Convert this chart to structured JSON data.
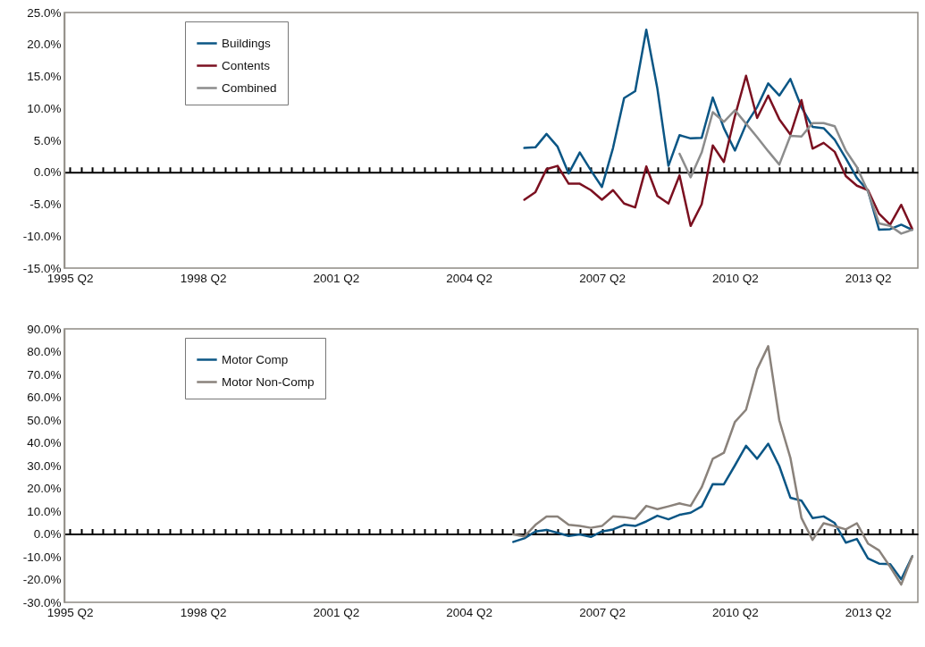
{
  "chart_data": [
    {
      "type": "line",
      "legend": "top left",
      "categories": [
        "1995 Q2",
        null,
        null,
        null,
        null,
        null,
        null,
        null,
        null,
        null,
        null,
        null,
        "1998 Q2",
        null,
        null,
        null,
        null,
        null,
        null,
        null,
        null,
        null,
        null,
        null,
        "2001 Q2",
        null,
        null,
        null,
        null,
        null,
        null,
        null,
        null,
        null,
        null,
        null,
        "2004 Q2",
        null,
        null,
        null,
        null,
        null,
        null,
        null,
        null,
        null,
        null,
        null,
        "2007 Q2",
        null,
        null,
        null,
        null,
        null,
        null,
        null,
        null,
        null,
        null,
        null,
        "2010 Q2",
        null,
        null,
        null,
        null,
        null,
        null,
        null,
        null,
        null,
        null,
        null,
        "2013 Q2",
        null,
        null,
        null,
        null
      ],
      "series": [
        {
          "name": "Buildings",
          "color": "#0b5685",
          "values": [
            null,
            null,
            null,
            null,
            null,
            null,
            null,
            null,
            null,
            null,
            null,
            null,
            null,
            null,
            null,
            null,
            null,
            null,
            null,
            null,
            null,
            null,
            null,
            null,
            null,
            null,
            null,
            null,
            null,
            null,
            null,
            null,
            null,
            null,
            null,
            null,
            null,
            null,
            null,
            null,
            null,
            3.8,
            3.9,
            6.0,
            4.0,
            -0.2,
            3.1,
            0.3,
            -2.3,
            3.8,
            11.6,
            12.7,
            22.3,
            13.1,
            1.0,
            5.8,
            5.3,
            5.4,
            11.7,
            6.9,
            3.4,
            7.5,
            10.2,
            13.9,
            12.0,
            14.6,
            10.2,
            7.1,
            6.9,
            5.1,
            2.2,
            -0.9,
            -2.9,
            -9.0,
            -8.9,
            -8.2,
            -9.0
          ]
        },
        {
          "name": "Contents",
          "color": "#7b1020",
          "values": [
            null,
            null,
            null,
            null,
            null,
            null,
            null,
            null,
            null,
            null,
            null,
            null,
            null,
            null,
            null,
            null,
            null,
            null,
            null,
            null,
            null,
            null,
            null,
            null,
            null,
            null,
            null,
            null,
            null,
            null,
            null,
            null,
            null,
            null,
            null,
            null,
            null,
            null,
            null,
            null,
            null,
            -4.3,
            -3.1,
            0.5,
            1.0,
            -1.8,
            -1.8,
            -2.8,
            -4.3,
            -2.8,
            -4.9,
            -5.5,
            0.9,
            -3.7,
            -4.9,
            -0.5,
            -8.4,
            -5.0,
            4.2,
            1.6,
            8.8,
            15.1,
            8.5,
            12.0,
            8.3,
            5.9,
            11.3,
            3.7,
            4.6,
            3.2,
            -0.6,
            -2.1,
            -2.8,
            -6.5,
            -8.2,
            -5.1,
            -8.9
          ]
        },
        {
          "name": "Combined",
          "color": "#8c8c8c",
          "values": [
            null,
            null,
            null,
            null,
            null,
            null,
            null,
            null,
            null,
            null,
            null,
            null,
            null,
            null,
            null,
            null,
            null,
            null,
            null,
            null,
            null,
            null,
            null,
            null,
            null,
            null,
            null,
            null,
            null,
            null,
            null,
            null,
            null,
            null,
            null,
            null,
            null,
            null,
            null,
            null,
            null,
            null,
            null,
            null,
            null,
            null,
            null,
            null,
            null,
            null,
            null,
            null,
            null,
            null,
            null,
            2.9,
            -0.8,
            3.1,
            9.4,
            7.9,
            9.7,
            7.6,
            5.5,
            3.3,
            1.2,
            5.7,
            5.6,
            7.7,
            7.7,
            7.2,
            3.4,
            0.8,
            -3.0,
            -8.0,
            -8.4,
            -9.6,
            -9.0
          ]
        }
      ],
      "ylim": [
        -15,
        25
      ],
      "yticks": [
        {
          "value": -15,
          "label": "-15.0%"
        },
        {
          "value": -10,
          "label": "-10.0%"
        },
        {
          "value": -5,
          "label": "-5.0%"
        },
        {
          "value": 0,
          "label": "0.0%"
        },
        {
          "value": 5,
          "label": "5.0%"
        },
        {
          "value": 10,
          "label": "10.0%"
        },
        {
          "value": 15,
          "label": "15.0%"
        },
        {
          "value": 20,
          "label": "20.0%"
        },
        {
          "value": 25,
          "label": "25.0%"
        }
      ]
    },
    {
      "type": "line",
      "legend": "top left",
      "categories": [
        "1995 Q2",
        null,
        null,
        null,
        null,
        null,
        null,
        null,
        null,
        null,
        null,
        null,
        "1998 Q2",
        null,
        null,
        null,
        null,
        null,
        null,
        null,
        null,
        null,
        null,
        null,
        "2001 Q2",
        null,
        null,
        null,
        null,
        null,
        null,
        null,
        null,
        null,
        null,
        null,
        "2004 Q2",
        null,
        null,
        null,
        null,
        null,
        null,
        null,
        null,
        null,
        null,
        null,
        "2007 Q2",
        null,
        null,
        null,
        null,
        null,
        null,
        null,
        null,
        null,
        null,
        null,
        "2010 Q2",
        null,
        null,
        null,
        null,
        null,
        null,
        null,
        null,
        null,
        null,
        null,
        "2013 Q2",
        null,
        null,
        null,
        null
      ],
      "series": [
        {
          "name": "Motor Comp",
          "color": "#0b5685",
          "values": [
            null,
            null,
            null,
            null,
            null,
            null,
            null,
            null,
            null,
            null,
            null,
            null,
            null,
            null,
            null,
            null,
            null,
            null,
            null,
            null,
            null,
            null,
            null,
            null,
            null,
            null,
            null,
            null,
            null,
            null,
            null,
            null,
            null,
            null,
            null,
            null,
            null,
            null,
            null,
            null,
            -3.5,
            -1.9,
            1.1,
            1.8,
            0.5,
            -0.9,
            -0.2,
            -1.3,
            1.1,
            2.0,
            4.0,
            3.5,
            5.5,
            8.0,
            6.4,
            8.4,
            9.3,
            12.1,
            21.9,
            21.8,
            30.1,
            38.7,
            33.0,
            39.6,
            29.8,
            15.9,
            14.6,
            7.0,
            7.7,
            4.8,
            -3.8,
            -2.2,
            -10.7,
            -13.0,
            -13.2,
            -19.9,
            -9.8
          ]
        },
        {
          "name": "Motor Non-Comp",
          "color": "#8a827b",
          "values": [
            null,
            null,
            null,
            null,
            null,
            null,
            null,
            null,
            null,
            null,
            null,
            null,
            null,
            null,
            null,
            null,
            null,
            null,
            null,
            null,
            null,
            null,
            null,
            null,
            null,
            null,
            null,
            null,
            null,
            null,
            null,
            null,
            null,
            null,
            null,
            null,
            null,
            null,
            null,
            null,
            -0.2,
            -1.1,
            4.0,
            7.6,
            7.6,
            4.0,
            3.5,
            2.7,
            3.5,
            7.7,
            7.4,
            6.7,
            12.3,
            10.9,
            12.1,
            13.4,
            12.3,
            20.5,
            33.0,
            35.6,
            49.2,
            54.5,
            72.3,
            82.4,
            49.9,
            33.4,
            7.0,
            -2.6,
            4.7,
            3.4,
            2.0,
            4.7,
            -4.2,
            -7.2,
            -14.4,
            -22.2,
            -9.8
          ]
        }
      ],
      "ylim": [
        -30,
        90
      ],
      "yticks": [
        {
          "value": -30,
          "label": "-30.0%"
        },
        {
          "value": -20,
          "label": "-20.0%"
        },
        {
          "value": -10,
          "label": "-10.0%"
        },
        {
          "value": 0,
          "label": "0.0%"
        },
        {
          "value": 10,
          "label": "10.0%"
        },
        {
          "value": 20,
          "label": "20.0%"
        },
        {
          "value": 30,
          "label": "30.0%"
        },
        {
          "value": 40,
          "label": "40.0%"
        },
        {
          "value": 50,
          "label": "50.0%"
        },
        {
          "value": 60,
          "label": "60.0%"
        },
        {
          "value": 70,
          "label": "70.0%"
        },
        {
          "value": 80,
          "label": "80.0%"
        },
        {
          "value": 90,
          "label": "90.0%"
        }
      ]
    }
  ]
}
